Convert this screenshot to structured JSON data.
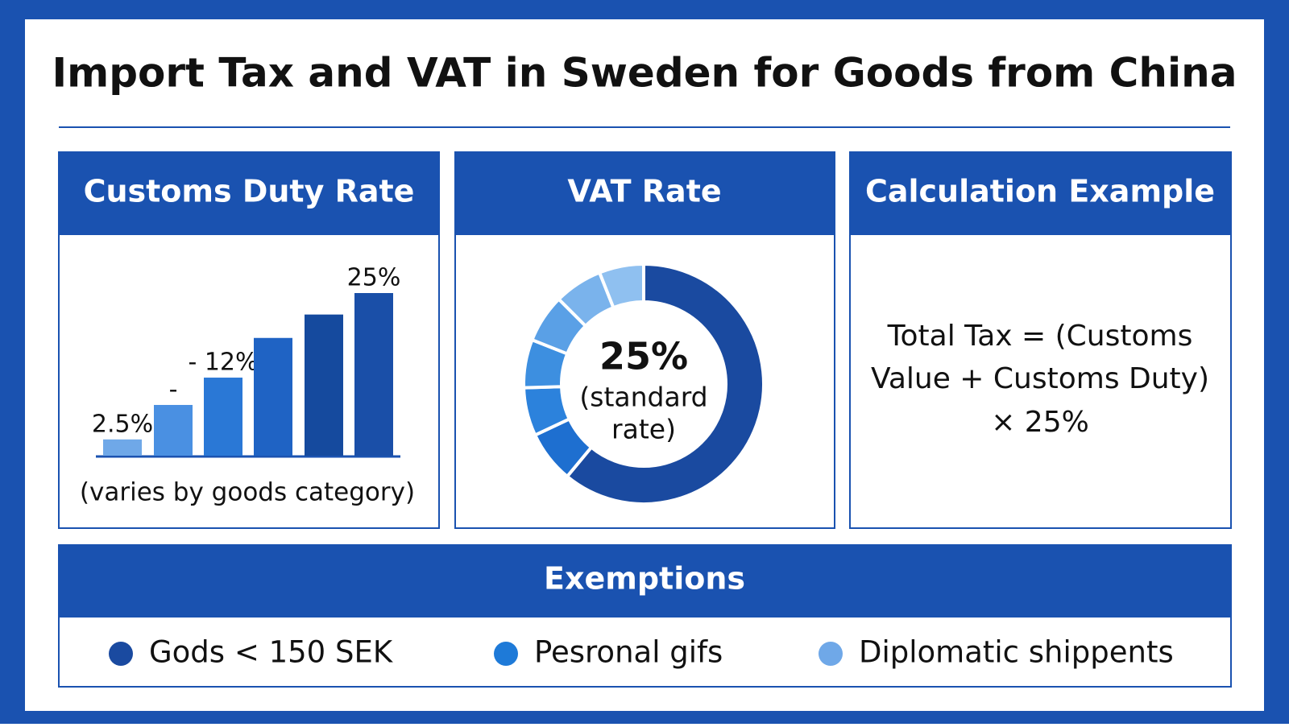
{
  "title": "Import Tax and VAT in Sweden for Goods from China",
  "customs_panel": {
    "title": "Customs Duty Rate",
    "chart_data": {
      "type": "bar",
      "values": [
        2.5,
        7.8,
        12,
        18.1,
        21.7,
        25
      ],
      "value_labels": [
        "2.5%",
        "-",
        "- 12%",
        null,
        null,
        "25%"
      ],
      "colors": [
        "#6fa8e8",
        "#4a90e2",
        "#2a78d6",
        "#1f63c4",
        "#154a9e",
        "#1a4fa8"
      ],
      "ylim": [
        0,
        25
      ]
    },
    "note": "(varies by goods category)"
  },
  "vat_panel": {
    "title": "VAT Rate",
    "chart_data": {
      "type": "donut",
      "values": [
        61,
        7,
        6.5,
        6.5,
        6.5,
        6.5,
        6
      ],
      "colors": [
        "#1a4aa0",
        "#1e6fd0",
        "#2c82dc",
        "#3d8fe0",
        "#5aa0e6",
        "#7ab3ec",
        "#8fc0f0"
      ],
      "center_value": "25%",
      "center_text": [
        "(standard",
        "rate)"
      ]
    }
  },
  "calculation_panel": {
    "title": "Calculation Example",
    "formula": [
      "Total Tax = (Customs",
      "Value + Customs Duty)",
      "× 25%"
    ]
  },
  "exemptions": {
    "title": "Exemptions",
    "items": [
      {
        "label": "Gods < 150 SEK",
        "color": "#1a4aa0"
      },
      {
        "label": "Pesronal gifs",
        "color": "#1e7ad8"
      },
      {
        "label": "Diplomatic shippents",
        "color": "#6fa8e8"
      }
    ]
  }
}
